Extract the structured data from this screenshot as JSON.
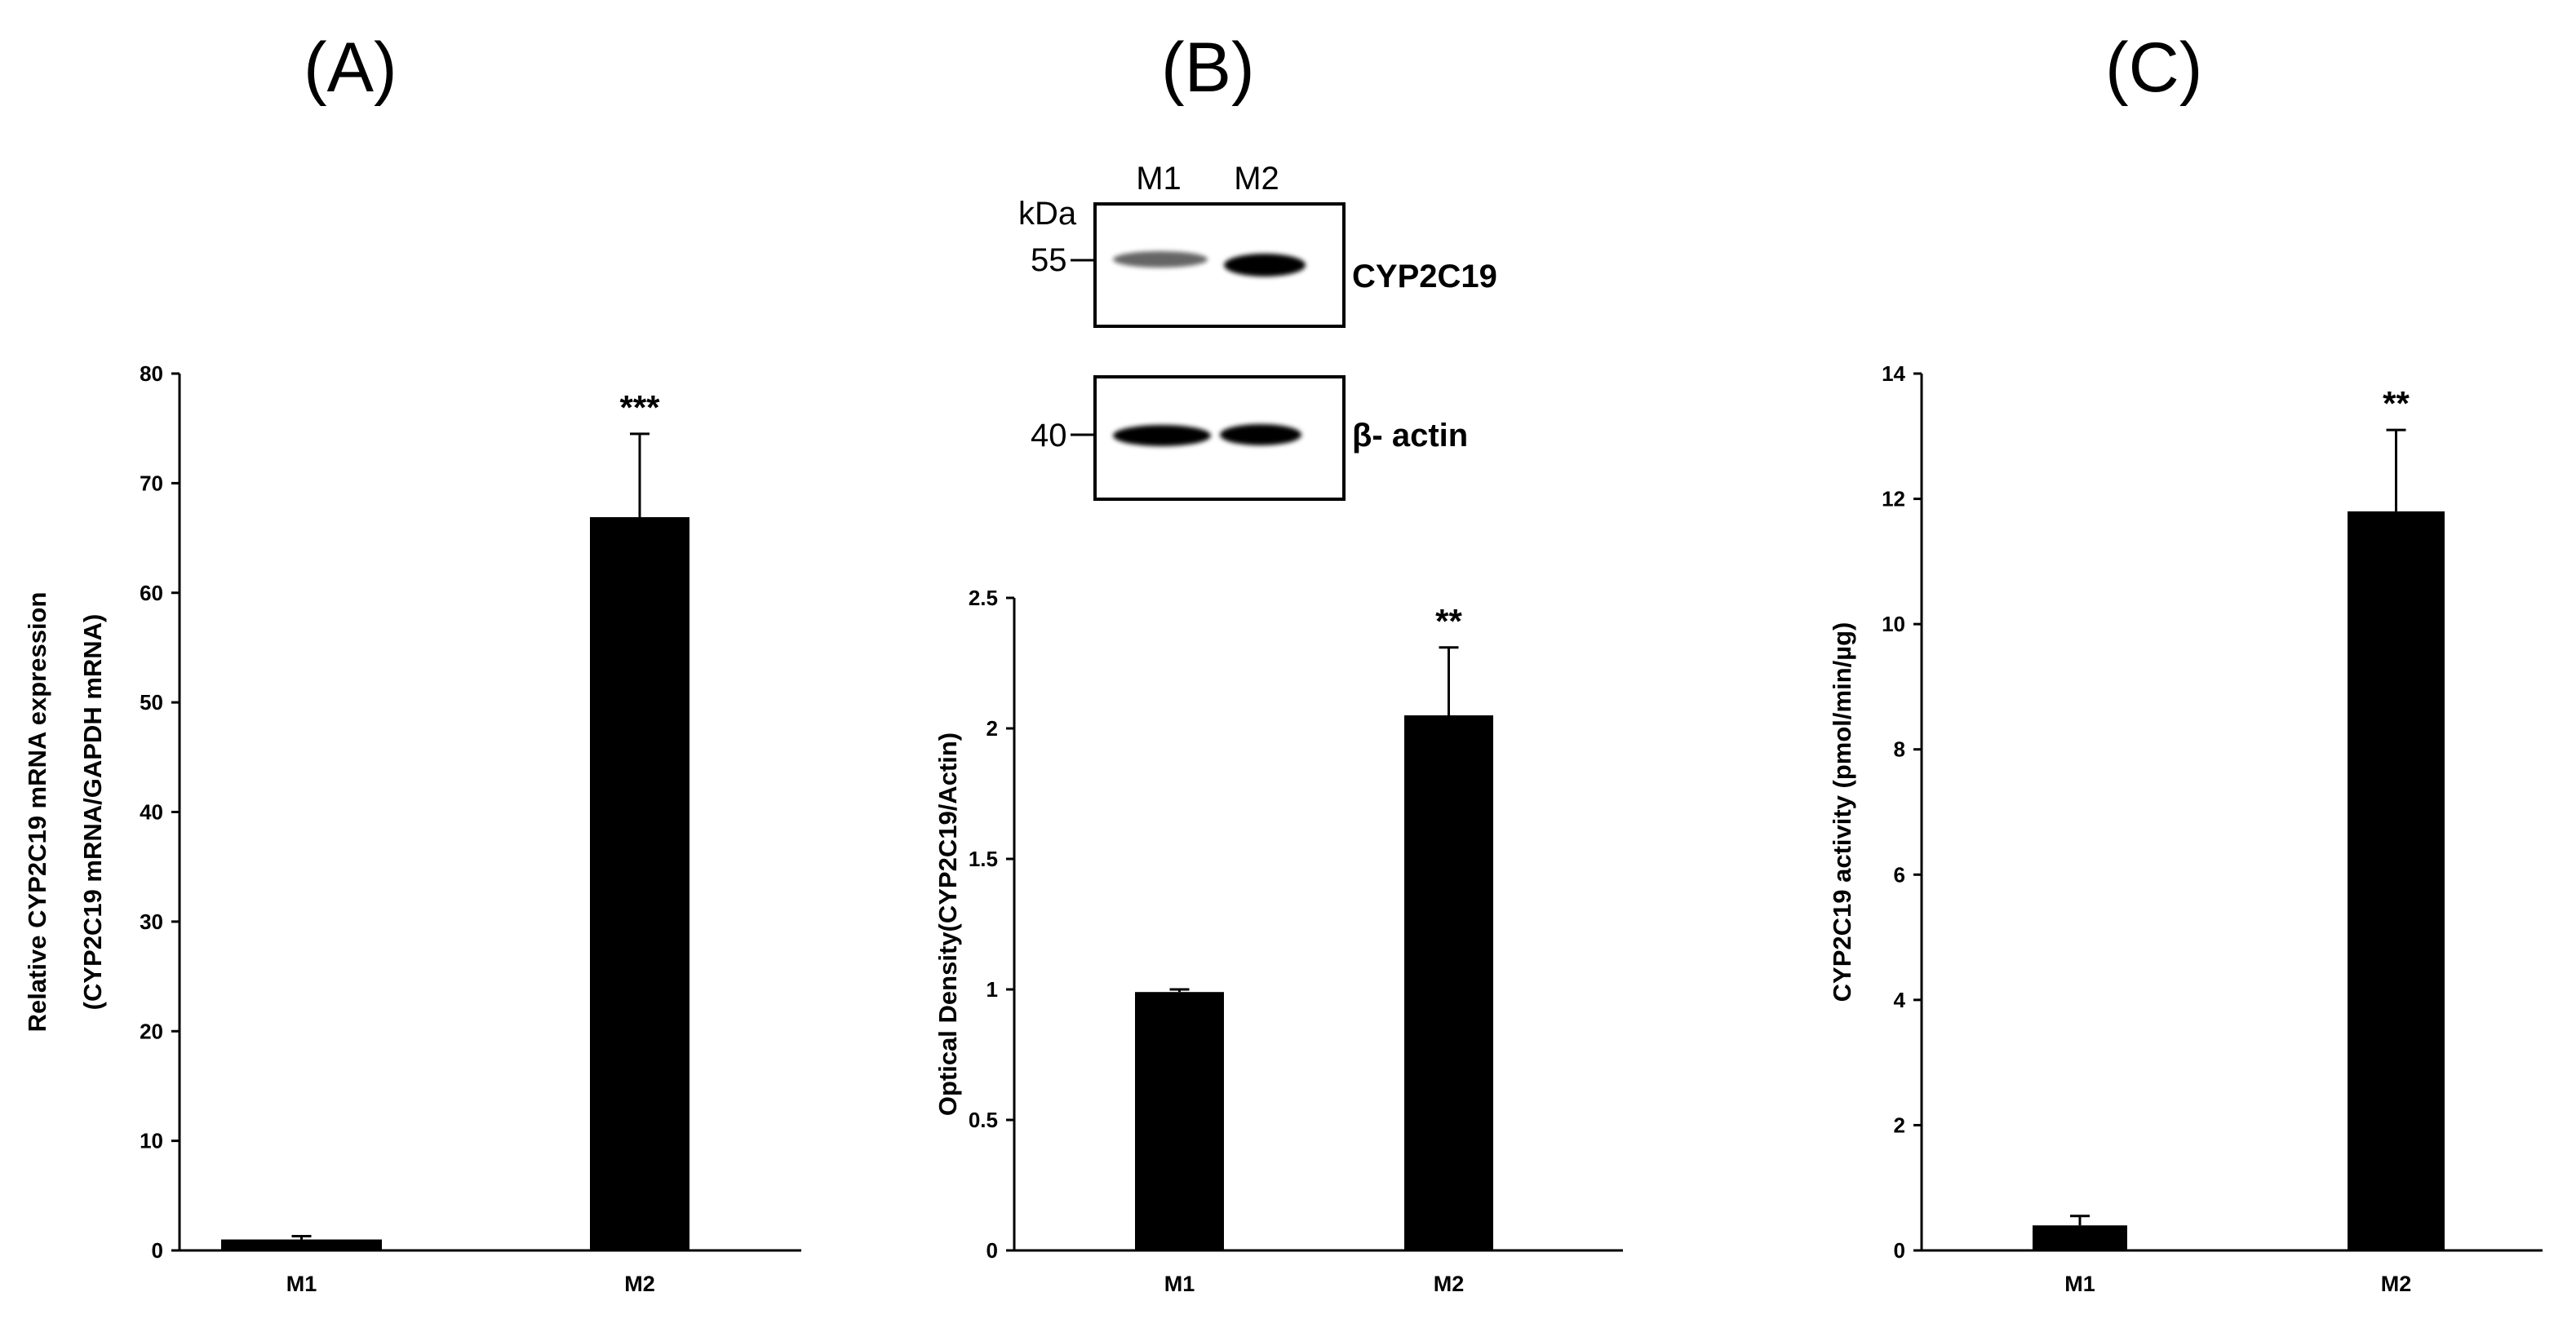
{
  "panels": {
    "A": {
      "letter": "(A)"
    },
    "B": {
      "letter": "(B)"
    },
    "C": {
      "letter": "(C)"
    }
  },
  "blot": {
    "lane_labels": [
      "M1",
      "M2"
    ],
    "unit": "kDa",
    "top": {
      "marker": "55",
      "protein": "CYP2C19",
      "band_intensity": [
        0.6,
        1.0
      ]
    },
    "bottom": {
      "marker": "40",
      "protein": "β- actin",
      "band_intensity": [
        1.0,
        1.0
      ]
    }
  },
  "chart_data": [
    {
      "id": "A",
      "type": "bar",
      "categories": [
        "M1",
        "M2"
      ],
      "values": [
        1.0,
        66.9
      ],
      "error": [
        0.3,
        7.6
      ],
      "significance": [
        "",
        "***"
      ],
      "ylabel": [
        "Relative CYP2C19 mRNA expression",
        "(CYP2C19 mRNA/GAPDH mRNA)"
      ],
      "ylim": [
        0,
        80
      ],
      "yticks": [
        0,
        10,
        20,
        30,
        40,
        50,
        60,
        70,
        80
      ],
      "color": "#000000"
    },
    {
      "id": "B",
      "type": "bar",
      "categories": [
        "M1",
        "M2"
      ],
      "values": [
        0.99,
        2.05
      ],
      "error": [
        0.01,
        0.26
      ],
      "significance": [
        "",
        "**"
      ],
      "ylabel": [
        "Optical Density(CYP2C19/Actin)"
      ],
      "ylim": [
        0,
        2.5
      ],
      "yticks": [
        0,
        0.5,
        1,
        1.5,
        2,
        2.5
      ],
      "color": "#000000"
    },
    {
      "id": "C",
      "type": "bar",
      "categories": [
        "M1",
        "M2"
      ],
      "values": [
        0.4,
        11.8
      ],
      "error": [
        0.15,
        1.3
      ],
      "significance": [
        "",
        "**"
      ],
      "ylabel": [
        "CYP2C19 activity (pmol/min/µg)"
      ],
      "ylim": [
        0,
        14
      ],
      "yticks": [
        0,
        2,
        4,
        6,
        8,
        10,
        12,
        14
      ],
      "color": "#000000"
    }
  ]
}
